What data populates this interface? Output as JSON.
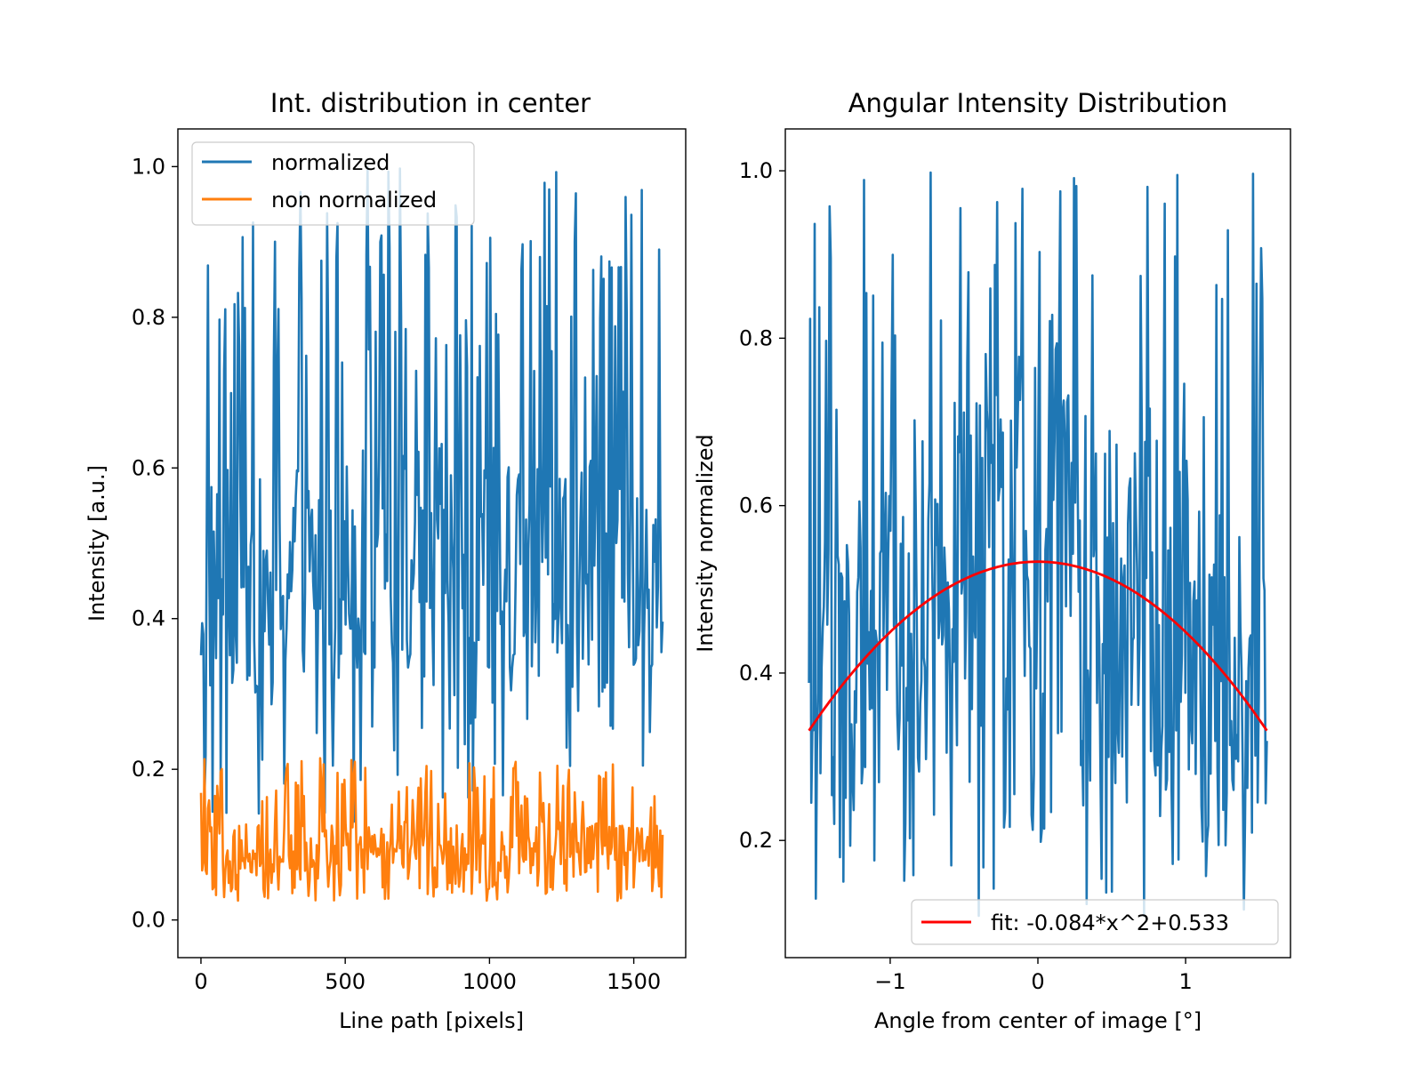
{
  "chart_data": [
    {
      "type": "line",
      "title": "Int. distribution in center",
      "xlabel": "Line path [pixels]",
      "ylabel": "Intensity [a.u.]",
      "xlim": [
        -80,
        1680
      ],
      "ylim": [
        -0.05,
        1.05
      ],
      "xticks": [
        0,
        500,
        1000,
        1500
      ],
      "xtick_labels": [
        "0",
        "500",
        "1000",
        "1500"
      ],
      "yticks": [
        0.0,
        0.2,
        0.4,
        0.6,
        0.8,
        1.0
      ],
      "ytick_labels": [
        "0.0",
        "0.2",
        "0.4",
        "0.6",
        "0.8",
        "1.0"
      ],
      "legend_position": "upper-left",
      "x": {
        "start": 0,
        "stop": 1600,
        "count": 400
      },
      "series": [
        {
          "name": "normalized",
          "color": "#1f77b4",
          "shape": "gaussian",
          "center": 800,
          "sigma": 900,
          "peak": 0.48,
          "noise_low": 0.13,
          "noise_high": 1.0,
          "min": 0.12,
          "max": 1.0
        },
        {
          "name": "non normalized",
          "color": "#ff7f0e",
          "shape": "gaussian",
          "center": 800,
          "sigma": 900,
          "peak": 0.1,
          "noise_low": 0.025,
          "noise_high": 0.215,
          "min": 0.025,
          "max": 0.215
        }
      ]
    },
    {
      "type": "line",
      "title": "Angular Intensity Distribution",
      "xlabel": "Angle from center of image [°]",
      "ylabel": "Intensity normalized",
      "xlim": [
        -1.71,
        1.71
      ],
      "ylim": [
        0.06,
        1.05
      ],
      "xticks": [
        -1,
        0,
        1
      ],
      "xtick_labels": [
        "−1",
        "0",
        "1"
      ],
      "yticks": [
        0.2,
        0.4,
        0.6,
        0.8,
        1.0
      ],
      "ytick_labels": [
        "0.2",
        "0.4",
        "0.6",
        "0.8",
        "1.0"
      ],
      "legend_position": "lower-right",
      "x": {
        "start": -1.55,
        "stop": 1.55,
        "count": 400
      },
      "series": [
        {
          "name": "",
          "color": "#1f77b4",
          "shape": "parabola",
          "a": -0.084,
          "c": 0.533,
          "min": 0.1,
          "max": 1.0
        },
        {
          "name": "fit: -0.084*x^2+0.533",
          "color": "#ff0000",
          "type": "line",
          "a": -0.084,
          "c": 0.533
        }
      ]
    }
  ]
}
